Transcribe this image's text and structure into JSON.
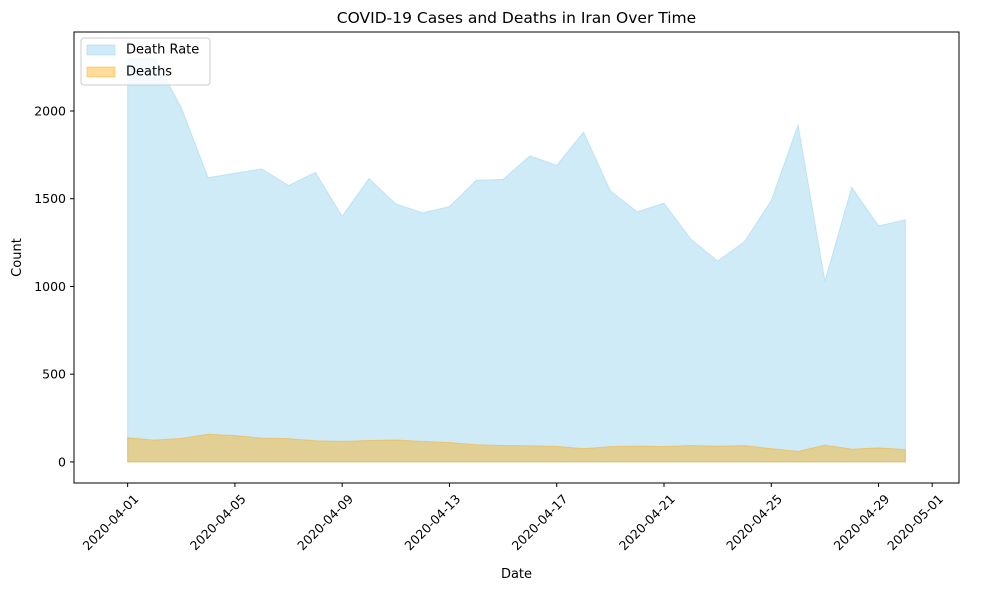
{
  "chart_data": {
    "type": "area",
    "title": "COVID-19 Cases and Deaths in Iran Over Time",
    "xlabel": "Date",
    "ylabel": "Count",
    "x_start": "2020-04-01",
    "x": [
      "2020-04-01",
      "2020-04-02",
      "2020-04-03",
      "2020-04-04",
      "2020-04-05",
      "2020-04-06",
      "2020-04-07",
      "2020-04-08",
      "2020-04-09",
      "2020-04-10",
      "2020-04-11",
      "2020-04-12",
      "2020-04-13",
      "2020-04-14",
      "2020-04-15",
      "2020-04-16",
      "2020-04-17",
      "2020-04-18",
      "2020-04-19",
      "2020-04-20",
      "2020-04-21",
      "2020-04-22",
      "2020-04-23",
      "2020-04-24",
      "2020-04-25",
      "2020-04-26",
      "2020-04-27",
      "2020-04-28",
      "2020-04-29",
      "2020-04-30"
    ],
    "xlim": [
      "2020-03-30",
      "2020-05-02"
    ],
    "ylim": [
      -120,
      2450
    ],
    "xticks": [
      "2020-04-01",
      "2020-04-05",
      "2020-04-09",
      "2020-04-13",
      "2020-04-17",
      "2020-04-21",
      "2020-04-25",
      "2020-04-29",
      "2020-05-01"
    ],
    "yticks": [
      0,
      500,
      1000,
      1500,
      2000
    ],
    "legend_position": "top-left",
    "grid": false,
    "series": [
      {
        "name": "Death Rate",
        "color": "#87ceeb",
        "values": [
          2300,
          2300,
          2020,
          1620,
          1645,
          1670,
          1575,
          1650,
          1400,
          1615,
          1470,
          1420,
          1455,
          1605,
          1610,
          1745,
          1690,
          1880,
          1545,
          1425,
          1475,
          1270,
          1145,
          1255,
          1490,
          1920,
          1030,
          1565,
          1345,
          1380
        ]
      },
      {
        "name": "Deaths",
        "color": "#ffa500",
        "values": [
          138,
          124,
          134,
          158,
          151,
          136,
          133,
          121,
          117,
          122,
          125,
          117,
          111,
          98,
          94,
          92,
          89,
          76,
          87,
          91,
          88,
          94,
          90,
          93,
          76,
          60,
          96,
          73,
          80,
          71
        ]
      }
    ]
  }
}
